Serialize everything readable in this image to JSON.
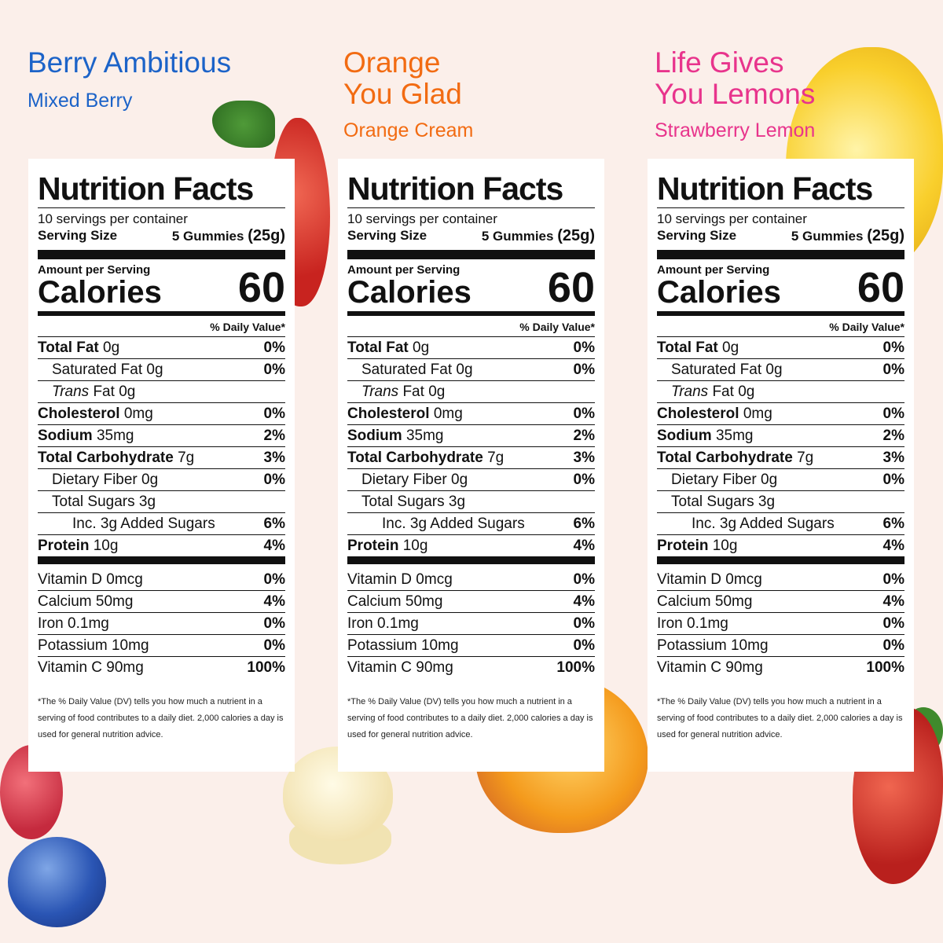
{
  "colors": {
    "background": "#fbefea",
    "berry": "#1c63c8",
    "orange": "#f26b12",
    "lemon": "#e8348c"
  },
  "flavors": [
    {
      "title": "Berry Ambitious",
      "subtitle": "Mixed Berry"
    },
    {
      "title": "Orange\nYou Glad",
      "subtitle": "Orange Cream"
    },
    {
      "title": "Life Gives\nYou Lemons",
      "subtitle": "Strawberry Lemon"
    }
  ],
  "label": {
    "title": "Nutrition Facts",
    "servings_per_container": "10 servings per container",
    "serving_size_label": "Serving Size",
    "serving_size_value": "5 Gummies",
    "serving_size_grams": "(25g)",
    "amount_per_serving": "Amount per Serving",
    "calories_label": "Calories",
    "calories_value": "60",
    "daily_value_header": "% Daily Value*",
    "nutrients": [
      {
        "name": "Total Fat",
        "amount": "0g",
        "dv": "0%"
      },
      {
        "name": "Saturated Fat",
        "amount": "0g",
        "dv": "0%"
      },
      {
        "name": "Trans",
        "name2": "Fat",
        "amount": "0g",
        "dv": ""
      },
      {
        "name": "Cholesterol",
        "amount": "0mg",
        "dv": "0%"
      },
      {
        "name": "Sodium",
        "amount": "35mg",
        "dv": "2%"
      },
      {
        "name": "Total Carbohydrate",
        "amount": "7g",
        "dv": "3%"
      },
      {
        "name": "Dietary Fiber",
        "amount": "0g",
        "dv": "0%"
      },
      {
        "name": "Total Sugars",
        "amount": "3g",
        "dv": ""
      },
      {
        "name": "Inc. 3g Added Sugars",
        "amount": "",
        "dv": "6%"
      },
      {
        "name": "Protein",
        "amount": "10g",
        "dv": "4%"
      }
    ],
    "vitamins": [
      {
        "name": "Vitamin D",
        "amount": "0mcg",
        "dv": "0%"
      },
      {
        "name": "Calcium",
        "amount": "50mg",
        "dv": "4%"
      },
      {
        "name": "Iron",
        "amount": "0.1mg",
        "dv": "0%"
      },
      {
        "name": "Potassium",
        "amount": "10mg",
        "dv": "0%"
      },
      {
        "name": "Vitamin C",
        "amount": "90mg",
        "dv": "100%"
      }
    ],
    "footnote": "*The % Daily Value (DV) tells you how much a nutrient in a serving of food contributes to a daily diet. 2,000 calories a day is used for general nutrition advice."
  }
}
